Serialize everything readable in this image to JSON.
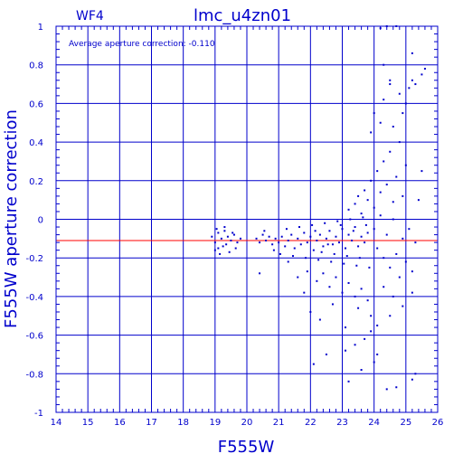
{
  "chart_data": {
    "type": "scatter",
    "title": "lmc_u4zn01",
    "corner_label": "WF4",
    "annotation": "Average aperture correction: -0.110",
    "xlabel": "F555W",
    "ylabel": "F555W aperture correction",
    "xlim": [
      14,
      26
    ],
    "ylim": [
      -1,
      1
    ],
    "x_ticks": [
      "14",
      "15",
      "16",
      "17",
      "18",
      "19",
      "20",
      "21",
      "22",
      "23",
      "24",
      "25",
      "26"
    ],
    "y_ticks": [
      "-1",
      "-0.8",
      "-0.6",
      "-0.4",
      "-0.2",
      "0",
      "0.2",
      "0.4",
      "0.6",
      "0.8",
      "1"
    ],
    "grid": true,
    "reference_line_y": -0.11,
    "colors": {
      "axes": "#0000cc",
      "points": "#0000cc",
      "reference_line": "#ff0000"
    },
    "points": [
      [
        18.9,
        -0.09
      ],
      [
        19.0,
        -0.12
      ],
      [
        19.1,
        -0.07
      ],
      [
        19.2,
        -0.1
      ],
      [
        19.3,
        -0.06
      ],
      [
        19.35,
        -0.13
      ],
      [
        19.4,
        -0.09
      ],
      [
        19.5,
        -0.11
      ],
      [
        19.6,
        -0.08
      ],
      [
        19.7,
        -0.12
      ],
      [
        19.8,
        -0.1
      ],
      [
        19.1,
        -0.15
      ],
      [
        19.25,
        -0.14
      ],
      [
        19.45,
        -0.17
      ],
      [
        19.05,
        -0.05
      ],
      [
        19.55,
        -0.07
      ],
      [
        19.65,
        -0.15
      ],
      [
        19.15,
        -0.18
      ],
      [
        19.3,
        -0.04
      ],
      [
        19.0,
        -0.16
      ],
      [
        20.3,
        -0.1
      ],
      [
        20.4,
        -0.12
      ],
      [
        20.5,
        -0.08
      ],
      [
        20.6,
        -0.11
      ],
      [
        20.7,
        -0.09
      ],
      [
        20.8,
        -0.13
      ],
      [
        20.9,
        -0.1
      ],
      [
        21.0,
        -0.12
      ],
      [
        21.1,
        -0.09
      ],
      [
        21.2,
        -0.14
      ],
      [
        21.3,
        -0.11
      ],
      [
        21.4,
        -0.08
      ],
      [
        21.5,
        -0.15
      ],
      [
        21.6,
        -0.1
      ],
      [
        21.7,
        -0.13
      ],
      [
        21.8,
        -0.07
      ],
      [
        21.9,
        -0.12
      ],
      [
        22.0,
        -0.09
      ],
      [
        22.1,
        -0.16
      ],
      [
        22.2,
        -0.11
      ],
      [
        22.3,
        -0.08
      ],
      [
        22.4,
        -0.14
      ],
      [
        22.5,
        -0.1
      ],
      [
        22.6,
        -0.06
      ],
      [
        22.7,
        -0.13
      ],
      [
        22.8,
        -0.09
      ],
      [
        22.9,
        -0.12
      ],
      [
        23.0,
        -0.05
      ],
      [
        23.1,
        -0.15
      ],
      [
        23.2,
        -0.08
      ],
      [
        23.3,
        -0.11
      ],
      [
        23.4,
        -0.04
      ],
      [
        23.5,
        -0.14
      ],
      [
        23.6,
        -0.09
      ],
      [
        23.7,
        -0.12
      ],
      [
        23.8,
        -0.07
      ],
      [
        20.55,
        -0.06
      ],
      [
        20.85,
        -0.16
      ],
      [
        21.05,
        -0.18
      ],
      [
        21.25,
        -0.05
      ],
      [
        21.45,
        -0.19
      ],
      [
        21.65,
        -0.04
      ],
      [
        21.85,
        -0.2
      ],
      [
        22.05,
        -0.03
      ],
      [
        22.25,
        -0.21
      ],
      [
        22.45,
        -0.02
      ],
      [
        22.65,
        -0.22
      ],
      [
        22.85,
        -0.01
      ],
      [
        23.05,
        -0.23
      ],
      [
        23.25,
        0.0
      ],
      [
        23.45,
        -0.24
      ],
      [
        23.65,
        0.01
      ],
      [
        23.85,
        -0.25
      ],
      [
        22.15,
        -0.06
      ],
      [
        22.35,
        -0.17
      ],
      [
        22.55,
        -0.13
      ],
      [
        22.75,
        -0.18
      ],
      [
        22.95,
        -0.03
      ],
      [
        23.15,
        -0.19
      ],
      [
        23.35,
        -0.06
      ],
      [
        23.55,
        -0.2
      ],
      [
        23.75,
        -0.03
      ],
      [
        20.4,
        -0.28
      ],
      [
        21.3,
        -0.22
      ],
      [
        21.6,
        -0.3
      ],
      [
        21.9,
        -0.27
      ],
      [
        22.2,
        -0.32
      ],
      [
        22.4,
        -0.28
      ],
      [
        22.6,
        -0.35
      ],
      [
        22.8,
        -0.3
      ],
      [
        23.0,
        -0.38
      ],
      [
        23.2,
        -0.33
      ],
      [
        23.4,
        -0.4
      ],
      [
        23.6,
        -0.36
      ],
      [
        23.8,
        -0.42
      ],
      [
        22.0,
        -0.48
      ],
      [
        22.3,
        -0.52
      ],
      [
        22.7,
        -0.44
      ],
      [
        23.1,
        -0.56
      ],
      [
        23.5,
        -0.46
      ],
      [
        23.9,
        -0.5
      ],
      [
        21.8,
        -0.38
      ],
      [
        22.1,
        -0.75
      ],
      [
        22.5,
        -0.7
      ],
      [
        23.1,
        -0.68
      ],
      [
        23.2,
        -0.84
      ],
      [
        23.4,
        -0.65
      ],
      [
        23.6,
        -0.78
      ],
      [
        23.7,
        -0.62
      ],
      [
        23.9,
        -0.58
      ],
      [
        24.1,
        -0.7
      ],
      [
        24.4,
        -0.88
      ],
      [
        24.7,
        -0.87
      ],
      [
        25.2,
        -0.83
      ],
      [
        25.3,
        -0.8
      ],
      [
        24.0,
        -0.74
      ],
      [
        23.2,
        0.05
      ],
      [
        23.4,
        0.08
      ],
      [
        23.5,
        0.12
      ],
      [
        23.6,
        0.03
      ],
      [
        23.7,
        0.15
      ],
      [
        23.8,
        0.1
      ],
      [
        23.9,
        0.2
      ],
      [
        24.0,
        0.06
      ],
      [
        24.1,
        0.25
      ],
      [
        24.2,
        0.14
      ],
      [
        24.3,
        0.3
      ],
      [
        24.4,
        0.18
      ],
      [
        24.5,
        0.35
      ],
      [
        24.6,
        0.09
      ],
      [
        24.7,
        0.22
      ],
      [
        24.8,
        0.4
      ],
      [
        24.9,
        0.12
      ],
      [
        25.0,
        0.28
      ],
      [
        23.9,
        0.45
      ],
      [
        24.0,
        0.55
      ],
      [
        24.2,
        0.5
      ],
      [
        24.3,
        0.62
      ],
      [
        24.5,
        0.7
      ],
      [
        24.6,
        0.48
      ],
      [
        24.8,
        0.65
      ],
      [
        24.9,
        0.55
      ],
      [
        25.0,
        0.6
      ],
      [
        25.1,
        0.68
      ],
      [
        25.2,
        0.72
      ],
      [
        25.3,
        0.7
      ],
      [
        25.5,
        0.75
      ],
      [
        25.6,
        0.78
      ],
      [
        24.3,
        0.8
      ],
      [
        24.5,
        0.72
      ],
      [
        24.2,
        0.99
      ],
      [
        24.4,
        1.0
      ],
      [
        24.7,
        1.0
      ],
      [
        25.2,
        0.86
      ],
      [
        24.0,
        -0.05
      ],
      [
        24.1,
        -0.15
      ],
      [
        24.2,
        0.02
      ],
      [
        24.3,
        -0.2
      ],
      [
        24.4,
        -0.08
      ],
      [
        24.5,
        -0.25
      ],
      [
        24.6,
        0.0
      ],
      [
        24.7,
        -0.18
      ],
      [
        24.8,
        -0.3
      ],
      [
        24.9,
        -0.1
      ],
      [
        25.0,
        -0.22
      ],
      [
        25.1,
        -0.05
      ],
      [
        25.2,
        -0.27
      ],
      [
        25.3,
        -0.12
      ],
      [
        25.4,
        0.1
      ],
      [
        25.5,
        0.25
      ],
      [
        24.3,
        -0.35
      ],
      [
        24.6,
        -0.4
      ],
      [
        24.9,
        -0.45
      ],
      [
        25.2,
        -0.38
      ],
      [
        24.1,
        -0.55
      ],
      [
        24.5,
        -0.5
      ]
    ]
  }
}
